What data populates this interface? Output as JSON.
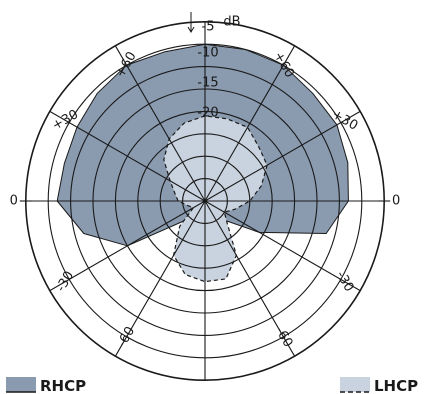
{
  "chart_data": {
    "type": "polar",
    "title": "",
    "radial_axis": {
      "unit_label": "dB",
      "tick_labels": [
        "-5",
        "-10",
        "-15",
        "-20"
      ],
      "rings": [
        -5,
        -10,
        -15,
        -20,
        -25,
        -30,
        -35,
        -40
      ]
    },
    "angular_axis": {
      "zero_direction": "horizontal",
      "tick_labels": [
        {
          "angle": 30,
          "label": "+30"
        },
        {
          "angle": 60,
          "label": "+60"
        },
        {
          "angle": -60,
          "label": "-60"
        },
        {
          "angle": -30,
          "label": "-30"
        },
        {
          "angle": 0,
          "label": "0"
        }
      ]
    },
    "series": [
      {
        "name": "RHCP",
        "color": "#8a9bb0",
        "style": "solid",
        "theta_deg": [
          90,
          105,
          120,
          135,
          150,
          165,
          180,
          195,
          210,
          225,
          240,
          255,
          270,
          285,
          300,
          315,
          330,
          345,
          0,
          15,
          30,
          45,
          60,
          75
        ],
        "level_db": [
          -5,
          -5.5,
          -5,
          -6,
          -7,
          -7.5,
          -7,
          -12,
          -20,
          -34,
          -40,
          -40,
          -40,
          -40,
          -40,
          -34,
          -26,
          -12,
          -8,
          -7,
          -6,
          -6,
          -5,
          -5
        ]
      },
      {
        "name": "LHCP",
        "color": "#c9d3df",
        "style": "dashed",
        "theta_deg": [
          90,
          105,
          120,
          135,
          150,
          165,
          180,
          195,
          210,
          225,
          240,
          255,
          270,
          285,
          300,
          315,
          330,
          345,
          0,
          15,
          30,
          45,
          60,
          75
        ],
        "level_db": [
          -21,
          -22,
          -24,
          -27,
          -31,
          -33,
          -34,
          -36,
          -37,
          -32,
          -26,
          -23,
          -22,
          -22,
          -26,
          -33,
          -35,
          -33,
          -30,
          -27,
          -24,
          -23,
          -21,
          -21
        ]
      }
    ],
    "legend": [
      {
        "label": "RHCP",
        "position": "bottom-left"
      },
      {
        "label": "LHCP",
        "position": "bottom-right"
      }
    ]
  }
}
